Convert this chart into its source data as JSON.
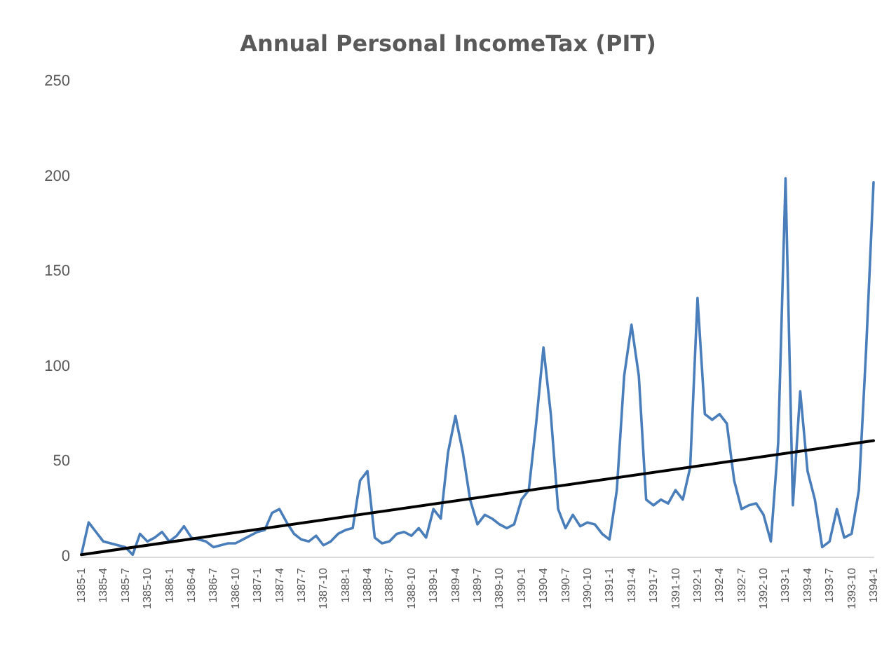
{
  "chart_data": {
    "type": "line",
    "title": "Annual Personal IncomeTax (PIT)",
    "categories": [
      "1385-1",
      null,
      null,
      "1385-4",
      null,
      null,
      "1385-7",
      null,
      null,
      "1385-10",
      null,
      null,
      "1386-1",
      null,
      null,
      "1386-4",
      null,
      null,
      "1386-7",
      null,
      null,
      "1386-10",
      null,
      null,
      "1387-1",
      null,
      null,
      "1387-4",
      null,
      null,
      "1387-7",
      null,
      null,
      "1387-10",
      null,
      null,
      "1388-1",
      null,
      null,
      "1388-4",
      null,
      null,
      "1388-7",
      null,
      null,
      "1388-10",
      null,
      null,
      "1389-1",
      null,
      null,
      "1389-4",
      null,
      null,
      "1389-7",
      null,
      null,
      "1389-10",
      null,
      null,
      "1390-1",
      null,
      null,
      "1390-4",
      null,
      null,
      "1390-7",
      null,
      null,
      "1390-10",
      null,
      null,
      "1391-1",
      null,
      null,
      "1391-4",
      null,
      null,
      "1391-7",
      null,
      null,
      "1391-10",
      null,
      null,
      "1392-1",
      null,
      null,
      "1392-4",
      null,
      null,
      "1392-7",
      null,
      null,
      "1392-10",
      null,
      null,
      "1393-1",
      null,
      null,
      "1393-4",
      null,
      null,
      "1393-7",
      null,
      null,
      "1393-10",
      null,
      null,
      "1394-1"
    ],
    "series": [
      {
        "color": "#4a7ebb",
        "values": [
          1,
          18,
          13,
          8,
          7,
          6,
          5,
          1,
          12,
          8,
          10,
          13,
          8,
          11,
          16,
          10,
          9,
          8,
          5,
          6,
          7,
          7,
          9,
          11,
          13,
          14,
          23,
          25,
          18,
          12,
          9,
          8,
          11,
          6,
          8,
          12,
          14,
          15,
          40,
          45,
          10,
          7,
          8,
          12,
          13,
          11,
          15,
          10,
          25,
          20,
          55,
          74,
          55,
          30,
          17,
          22,
          20,
          17,
          15,
          17,
          30,
          35,
          70,
          110,
          75,
          25,
          15,
          22,
          16,
          18,
          17,
          12,
          9,
          35,
          95,
          122,
          95,
          30,
          27,
          30,
          28,
          35,
          30,
          47,
          136,
          75,
          72,
          75,
          70,
          40,
          25,
          27,
          28,
          22,
          8,
          60,
          199,
          27,
          87,
          45,
          30,
          5,
          8,
          25,
          10,
          12,
          35,
          110,
          197
        ]
      },
      {
        "color": "#000000",
        "x": [
          "1385-1",
          "1394-1"
        ],
        "values": [
          1,
          61
        ]
      }
    ],
    "ylim": [
      0,
      250
    ],
    "yticks": [
      0,
      50,
      100,
      150,
      200,
      250
    ],
    "grid": false,
    "marker": "none",
    "line_style": "solid"
  }
}
